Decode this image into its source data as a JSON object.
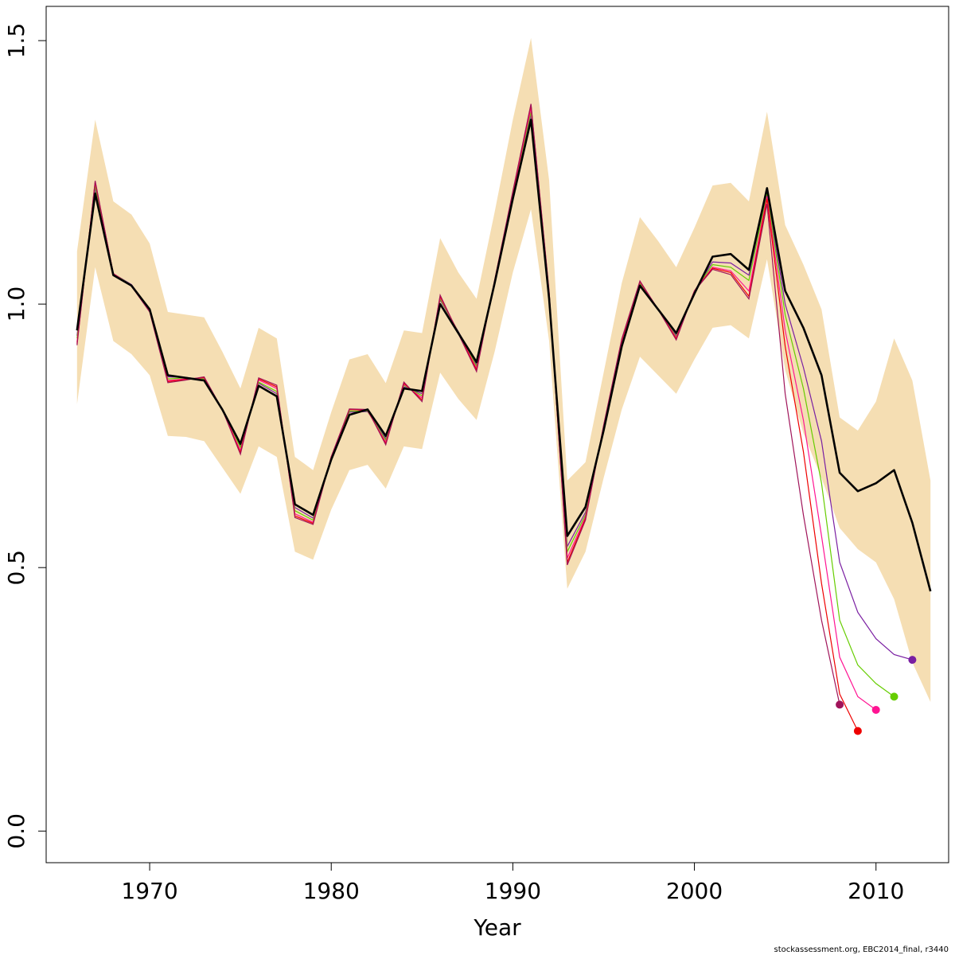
{
  "chart_data": {
    "type": "line",
    "xlabel": "Year",
    "ylabel": "",
    "xlim": [
      1964.3,
      2014.0
    ],
    "ylim": [
      -0.06,
      1.565
    ],
    "x_ticks": [
      1970,
      1980,
      1990,
      2000,
      2010
    ],
    "x_tick_labels": [
      "1970",
      "1980",
      "1990",
      "2000",
      "2010"
    ],
    "y_ticks": [
      0.0,
      0.5,
      1.0,
      1.5
    ],
    "y_tick_labels": [
      "0.0",
      "0.5",
      "1.0",
      "1.5"
    ],
    "grid": false,
    "colors": {
      "band": "#F5DEB3",
      "main": "#000000",
      "peel_red": "#EE0000",
      "peel_pink": "#FF1493",
      "peel_green": "#66CD00",
      "peel_purple": "#7A1FA2",
      "peel_maroon": "#A0145A",
      "peel_violet": "#6A0DAD"
    },
    "band": {
      "x": [
        1966,
        1967,
        1968,
        1969,
        1970,
        1971,
        1972,
        1973,
        1974,
        1975,
        1976,
        1977,
        1978,
        1979,
        1980,
        1981,
        1982,
        1983,
        1984,
        1985,
        1986,
        1987,
        1988,
        1989,
        1990,
        1991,
        1992,
        1993,
        1994,
        1995,
        1996,
        1997,
        1998,
        1999,
        2000,
        2001,
        2002,
        2003,
        2004,
        2005,
        2006,
        2007,
        2008,
        2009,
        2010,
        2011,
        2012,
        2013
      ],
      "lower": [
        0.81,
        1.07,
        0.93,
        0.905,
        0.865,
        0.75,
        0.748,
        0.74,
        0.69,
        0.64,
        0.73,
        0.71,
        0.53,
        0.515,
        0.61,
        0.685,
        0.695,
        0.65,
        0.73,
        0.725,
        0.87,
        0.82,
        0.78,
        0.91,
        1.06,
        1.18,
        0.93,
        0.46,
        0.53,
        0.67,
        0.8,
        0.9,
        0.865,
        0.83,
        0.895,
        0.955,
        0.96,
        0.935,
        1.085,
        0.875,
        0.755,
        0.67,
        0.575,
        0.535,
        0.51,
        0.44,
        0.32,
        0.245
      ],
      "upper": [
        1.1,
        1.35,
        1.195,
        1.17,
        1.115,
        0.985,
        0.98,
        0.975,
        0.91,
        0.84,
        0.955,
        0.935,
        0.71,
        0.685,
        0.795,
        0.895,
        0.905,
        0.85,
        0.95,
        0.945,
        1.125,
        1.06,
        1.01,
        1.175,
        1.35,
        1.505,
        1.235,
        0.665,
        0.7,
        0.87,
        1.04,
        1.165,
        1.12,
        1.07,
        1.145,
        1.225,
        1.23,
        1.195,
        1.365,
        1.15,
        1.075,
        0.99,
        0.785,
        0.76,
        0.815,
        0.935,
        0.855,
        0.665
      ]
    },
    "main_series": {
      "x": [
        1966,
        1967,
        1968,
        1969,
        1970,
        1971,
        1972,
        1973,
        1974,
        1975,
        1976,
        1977,
        1978,
        1979,
        1980,
        1981,
        1982,
        1983,
        1984,
        1985,
        1986,
        1987,
        1988,
        1989,
        1990,
        1991,
        1992,
        1993,
        1994,
        1995,
        1996,
        1997,
        1998,
        1999,
        2000,
        2001,
        2002,
        2003,
        2004,
        2005,
        2006,
        2007,
        2008,
        2009,
        2010,
        2011,
        2012,
        2013
      ],
      "values": [
        0.95,
        1.21,
        1.055,
        1.035,
        0.99,
        0.865,
        0.86,
        0.855,
        0.8,
        0.735,
        0.845,
        0.825,
        0.62,
        0.6,
        0.705,
        0.79,
        0.8,
        0.75,
        0.84,
        0.835,
        1.0,
        0.945,
        0.89,
        1.04,
        1.2,
        1.35,
        1.01,
        0.56,
        0.615,
        0.76,
        0.92,
        1.035,
        0.99,
        0.945,
        1.02,
        1.09,
        1.095,
        1.065,
        1.22,
        1.025,
        0.955,
        0.865,
        0.68,
        0.645,
        0.66,
        0.685,
        0.585,
        0.455
      ]
    },
    "retrospective_series": [
      {
        "color": "#7A1FA2",
        "x": [
          1966,
          1967,
          1968,
          1969,
          1970,
          1971,
          1972,
          1973,
          1974,
          1975,
          1976,
          1977,
          1978,
          1979,
          1980,
          1981,
          1982,
          1983,
          1984,
          1985,
          1986,
          1987,
          1988,
          1989,
          1990,
          1991,
          1992,
          1993,
          1994,
          1995,
          1996,
          1997,
          1998,
          1999,
          2000,
          2001,
          2002,
          2003,
          2004,
          2005,
          2006,
          2007,
          2008,
          2009,
          2010,
          2011,
          2012
        ],
        "values": [
          0.94,
          1.22,
          1.058,
          1.037,
          0.99,
          0.862,
          0.861,
          0.857,
          0.8,
          0.732,
          0.85,
          0.83,
          0.614,
          0.594,
          0.708,
          0.795,
          0.796,
          0.745,
          0.843,
          0.83,
          1.008,
          0.948,
          0.885,
          1.042,
          1.205,
          1.36,
          1.015,
          0.54,
          0.605,
          0.765,
          0.925,
          1.038,
          0.99,
          0.94,
          1.025,
          1.08,
          1.078,
          1.055,
          1.215,
          1.0,
          0.88,
          0.74,
          0.51,
          0.415,
          0.365,
          0.335,
          0.325
        ],
        "end": {
          "x": 2012,
          "value": 0.325
        }
      },
      {
        "color": "#66CD00",
        "x": [
          1966,
          1967,
          1968,
          1969,
          1970,
          1971,
          1972,
          1973,
          1974,
          1975,
          1976,
          1977,
          1978,
          1979,
          1980,
          1981,
          1982,
          1983,
          1984,
          1985,
          1986,
          1987,
          1988,
          1989,
          1990,
          1991,
          1992,
          1993,
          1994,
          1995,
          1996,
          1997,
          1998,
          1999,
          2000,
          2001,
          2002,
          2003,
          2004,
          2005,
          2006,
          2007,
          2008,
          2009,
          2010,
          2011
        ],
        "values": [
          0.935,
          1.225,
          1.058,
          1.036,
          0.988,
          0.858,
          0.86,
          0.858,
          0.8,
          0.728,
          0.852,
          0.834,
          0.608,
          0.59,
          0.709,
          0.797,
          0.797,
          0.742,
          0.846,
          0.826,
          1.01,
          0.947,
          0.882,
          1.043,
          1.208,
          1.365,
          1.018,
          0.53,
          0.6,
          0.767,
          0.928,
          1.04,
          0.99,
          0.938,
          1.025,
          1.075,
          1.07,
          1.045,
          1.21,
          0.98,
          0.84,
          0.66,
          0.4,
          0.315,
          0.28,
          0.255
        ],
        "end": {
          "x": 2011,
          "value": 0.255
        }
      },
      {
        "color": "#FF1493",
        "x": [
          1966,
          1967,
          1968,
          1969,
          1970,
          1971,
          1972,
          1973,
          1974,
          1975,
          1976,
          1977,
          1978,
          1979,
          1980,
          1981,
          1982,
          1983,
          1984,
          1985,
          1986,
          1987,
          1988,
          1989,
          1990,
          1991,
          1992,
          1993,
          1994,
          1995,
          1996,
          1997,
          1998,
          1999,
          2000,
          2001,
          2002,
          2003,
          2004,
          2005,
          2006,
          2007,
          2008,
          2009,
          2010
        ],
        "values": [
          0.928,
          1.23,
          1.058,
          1.035,
          0.987,
          0.855,
          0.858,
          0.86,
          0.8,
          0.722,
          0.856,
          0.84,
          0.602,
          0.586,
          0.71,
          0.8,
          0.798,
          0.738,
          0.848,
          0.822,
          1.013,
          0.946,
          0.878,
          1.044,
          1.21,
          1.372,
          1.02,
          0.518,
          0.596,
          0.768,
          0.93,
          1.042,
          0.99,
          0.936,
          1.025,
          1.07,
          1.063,
          1.025,
          1.205,
          0.95,
          0.78,
          0.56,
          0.33,
          0.255,
          0.23
        ],
        "end": {
          "x": 2010,
          "value": 0.23
        }
      },
      {
        "color": "#EE0000",
        "x": [
          1966,
          1967,
          1968,
          1969,
          1970,
          1971,
          1972,
          1973,
          1974,
          1975,
          1976,
          1977,
          1978,
          1979,
          1980,
          1981,
          1982,
          1983,
          1984,
          1985,
          1986,
          1987,
          1988,
          1989,
          1990,
          1991,
          1992,
          1993,
          1994,
          1995,
          1996,
          1997,
          1998,
          1999,
          2000,
          2001,
          2002,
          2003,
          2004,
          2005,
          2006,
          2007,
          2008,
          2009
        ],
        "values": [
          0.925,
          1.232,
          1.057,
          1.035,
          0.986,
          0.853,
          0.857,
          0.861,
          0.8,
          0.718,
          0.858,
          0.843,
          0.598,
          0.584,
          0.71,
          0.8,
          0.799,
          0.735,
          0.85,
          0.818,
          1.015,
          0.945,
          0.875,
          1.045,
          1.212,
          1.378,
          1.022,
          0.51,
          0.593,
          0.769,
          0.932,
          1.043,
          0.99,
          0.934,
          1.025,
          1.068,
          1.06,
          1.015,
          1.2,
          0.92,
          0.72,
          0.47,
          0.26,
          0.19
        ],
        "end": {
          "x": 2009,
          "value": 0.19
        }
      },
      {
        "color": "#A0145A",
        "x": [
          1966,
          1967,
          1968,
          1969,
          1970,
          1971,
          1972,
          1973,
          1974,
          1975,
          1976,
          1977,
          1978,
          1979,
          1980,
          1981,
          1982,
          1983,
          1984,
          1985,
          1986,
          1987,
          1988,
          1989,
          1990,
          1991,
          1992,
          1993,
          1994,
          1995,
          1996,
          1997,
          1998,
          1999,
          2000,
          2001,
          2002,
          2003,
          2004,
          2005,
          2006,
          2007,
          2008
        ],
        "values": [
          0.922,
          1.234,
          1.057,
          1.034,
          0.985,
          0.851,
          0.856,
          0.862,
          0.8,
          0.715,
          0.86,
          0.846,
          0.595,
          0.582,
          0.71,
          0.801,
          0.8,
          0.733,
          0.852,
          0.815,
          1.017,
          0.944,
          0.872,
          1.046,
          1.214,
          1.38,
          1.024,
          0.505,
          0.59,
          0.77,
          0.934,
          1.044,
          0.99,
          0.932,
          1.025,
          1.066,
          1.056,
          1.01,
          1.19,
          0.83,
          0.6,
          0.4,
          0.24
        ],
        "end": {
          "x": 2008,
          "value": 0.24
        }
      }
    ]
  },
  "credit": "stockassessment.org, EBC2014_final, r3440"
}
